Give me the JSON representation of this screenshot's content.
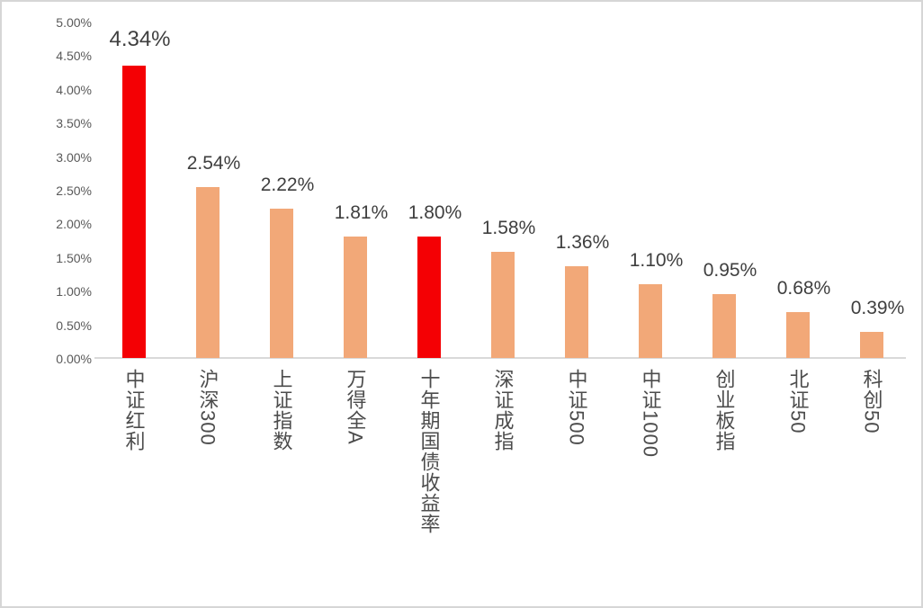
{
  "chart_data": {
    "type": "bar",
    "categories": [
      "中证红利",
      "沪深300",
      "上证指数",
      "万得全A",
      "十年期国债收益率",
      "深证成指",
      "中证500",
      "中证1000",
      "创业板指",
      "北证50",
      "科创50"
    ],
    "values": [
      4.34,
      2.54,
      2.22,
      1.81,
      1.8,
      1.58,
      1.36,
      1.1,
      0.95,
      0.68,
      0.39
    ],
    "value_labels": [
      "4.34%",
      "2.54%",
      "2.22%",
      "1.81%",
      "1.80%",
      "1.58%",
      "1.36%",
      "1.10%",
      "0.95%",
      "0.68%",
      "0.39%"
    ],
    "highlight_indices": [
      0,
      4
    ],
    "y_ticks": [
      "5.00%",
      "4.50%",
      "4.00%",
      "3.50%",
      "3.00%",
      "2.50%",
      "2.00%",
      "1.50%",
      "1.00%",
      "0.50%",
      "0.00%"
    ],
    "ylim": [
      0,
      5
    ],
    "title": "",
    "xlabel": "",
    "ylabel": "",
    "grid": false,
    "legend": false,
    "colors": {
      "highlight_bar": "#f40004",
      "normal_bar": "#f2a878",
      "axis_line": "#d9d9d9",
      "tick_text": "#595959",
      "value_text": "#3f3f3f",
      "category_text": "#4c4c4c",
      "background": "#ffffff"
    }
  }
}
